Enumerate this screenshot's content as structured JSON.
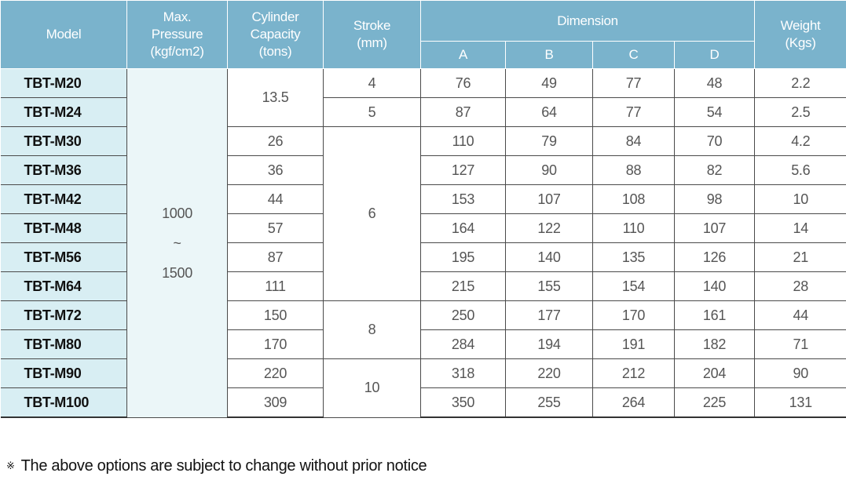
{
  "headers": {
    "model": "Model",
    "pressure": [
      "Max.",
      "Pressure",
      "(kgf/cm2)"
    ],
    "capacity": [
      "Cylinder",
      "Capacity",
      "(tons)"
    ],
    "stroke": [
      "Stroke",
      "(mm)"
    ],
    "dimension": "Dimension",
    "weight": [
      "Weight",
      "(Kgs)"
    ],
    "dim_a": "A",
    "dim_b": "B",
    "dim_c": "C",
    "dim_d": "D"
  },
  "pressure_range": [
    "1000",
    "~",
    "1500"
  ],
  "rows": [
    {
      "model": "TBT-M20",
      "capacity": "13.5",
      "stroke": "4",
      "a": "76",
      "b": "49",
      "c": "77",
      "d": "48",
      "weight": "2.2"
    },
    {
      "model": "TBT-M24",
      "capacity": "13.5",
      "stroke": "5",
      "a": "87",
      "b": "64",
      "c": "77",
      "d": "54",
      "weight": "2.5"
    },
    {
      "model": "TBT-M30",
      "capacity": "26",
      "stroke": "6",
      "a": "110",
      "b": "79",
      "c": "84",
      "d": "70",
      "weight": "4.2"
    },
    {
      "model": "TBT-M36",
      "capacity": "36",
      "stroke": "6",
      "a": "127",
      "b": "90",
      "c": "88",
      "d": "82",
      "weight": "5.6"
    },
    {
      "model": "TBT-M42",
      "capacity": "44",
      "stroke": "6",
      "a": "153",
      "b": "107",
      "c": "108",
      "d": "98",
      "weight": "10"
    },
    {
      "model": "TBT-M48",
      "capacity": "57",
      "stroke": "6",
      "a": "164",
      "b": "122",
      "c": "110",
      "d": "107",
      "weight": "14"
    },
    {
      "model": "TBT-M56",
      "capacity": "87",
      "stroke": "6",
      "a": "195",
      "b": "140",
      "c": "135",
      "d": "126",
      "weight": "21"
    },
    {
      "model": "TBT-M64",
      "capacity": "111",
      "stroke": "6",
      "a": "215",
      "b": "155",
      "c": "154",
      "d": "140",
      "weight": "28"
    },
    {
      "model": "TBT-M72",
      "capacity": "150",
      "stroke": "8",
      "a": "250",
      "b": "177",
      "c": "170",
      "d": "161",
      "weight": "44"
    },
    {
      "model": "TBT-M80",
      "capacity": "170",
      "stroke": "8",
      "a": "284",
      "b": "194",
      "c": "191",
      "d": "182",
      "weight": "71"
    },
    {
      "model": "TBT-M90",
      "capacity": "220",
      "stroke": "10",
      "a": "318",
      "b": "220",
      "c": "212",
      "d": "204",
      "weight": "90"
    },
    {
      "model": "TBT-M100",
      "capacity": "309",
      "stroke": "10",
      "a": "350",
      "b": "255",
      "c": "264",
      "d": "225",
      "weight": "131"
    }
  ],
  "notice": {
    "mark": "※",
    "text": "The above options are subject to change without prior notice"
  },
  "colors": {
    "header_bg": "#7ab3cc",
    "model_bg": "#d8eef3",
    "pressure_bg": "#ebf6f8"
  }
}
